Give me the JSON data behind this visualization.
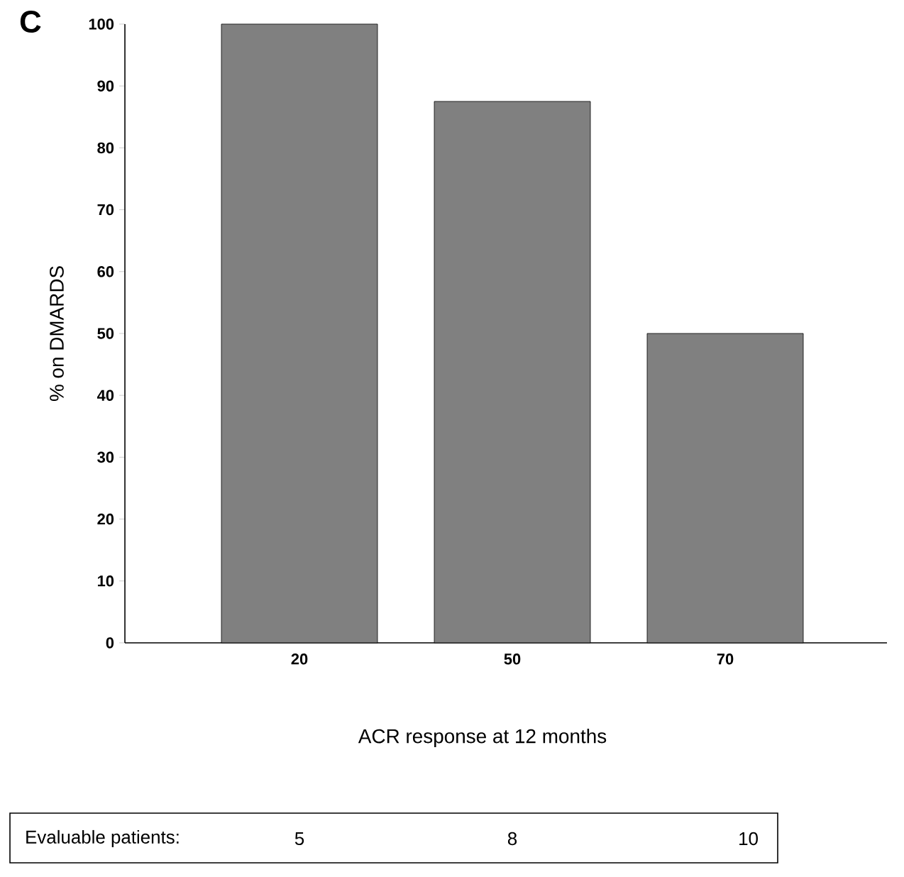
{
  "chart_data": {
    "type": "bar",
    "title": "C",
    "xlabel": "ACR response at 12 months",
    "ylabel": "% on DMARDS",
    "categories": [
      "20",
      "50",
      "70"
    ],
    "values": [
      100,
      87.5,
      50
    ],
    "color": "#808080",
    "ylim": [
      0,
      100
    ],
    "yticks": [
      0,
      10,
      20,
      30,
      40,
      50,
      60,
      70,
      80,
      90,
      100
    ],
    "annotations": [
      "Evaluable patients:",
      "5",
      "8",
      "10"
    ]
  }
}
